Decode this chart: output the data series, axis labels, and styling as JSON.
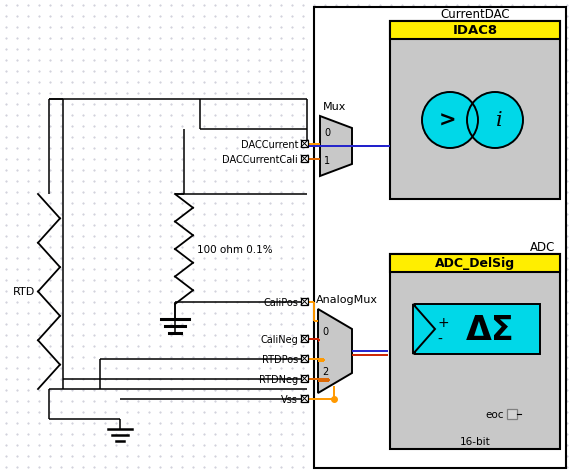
{
  "white": "#ffffff",
  "light_gray": "#d4d4d4",
  "gray_box": "#c8c8c8",
  "yellow": "#ffee00",
  "cyan": "#00d8e8",
  "orange": "#ff9900",
  "red_wire": "#cc2200",
  "blue_wire": "#2222cc",
  "dot_color": "#c8c8d4",
  "black": "#000000",
  "rtd_label": "RTD",
  "res_label": "100 ohm 0.1%",
  "mux_label": "Mux",
  "analog_mux_label": "AnalogMux",
  "current_dac_label": "CurrentDAC",
  "idac8_label": "IDAC8",
  "adc_label": "ADC",
  "adc_delsig_label": "ADC_DelSig",
  "eoc_label": "eoc",
  "bit_label": "16-bit",
  "port_names": [
    "DACCurrent",
    "DACCurrentCali",
    "CaliPos",
    "CaliNeg",
    "RTDPos",
    "RTDNeg",
    "Vss"
  ],
  "mux_ports": [
    "0",
    "1"
  ],
  "amux_ports": [
    "0",
    "2"
  ],
  "fig_w": 5.72,
  "fig_h": 4.77,
  "dpi": 100
}
